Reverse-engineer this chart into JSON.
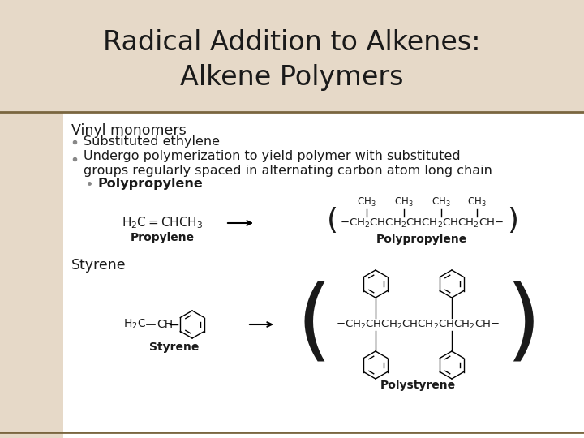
{
  "title_line1": "Radical Addition to Alkenes:",
  "title_line2": "Alkene Polymers",
  "title_fontsize": 24,
  "title_color": "#1a1a1a",
  "bg_left_color": "#e6d9c8",
  "separator_color": "#7a6640",
  "body_bg_color": "#ffffff",
  "text_color": "#1a1a1a",
  "vinyl_label": "Vinyl monomers",
  "bullet1": "Substituted ethylene",
  "bullet2a": "Undergo polymerization to yield polymer with substituted",
  "bullet2b": "groups regularly spaced in alternating carbon atom long chain",
  "sub_bullet": "Polypropylene",
  "styrene_label": "Styrene",
  "propylene_label": "Propylene",
  "polypropylene_label": "Polypropylene",
  "styrene_chem_label": "Styrene",
  "polystyrene_label": "Polystyrene"
}
